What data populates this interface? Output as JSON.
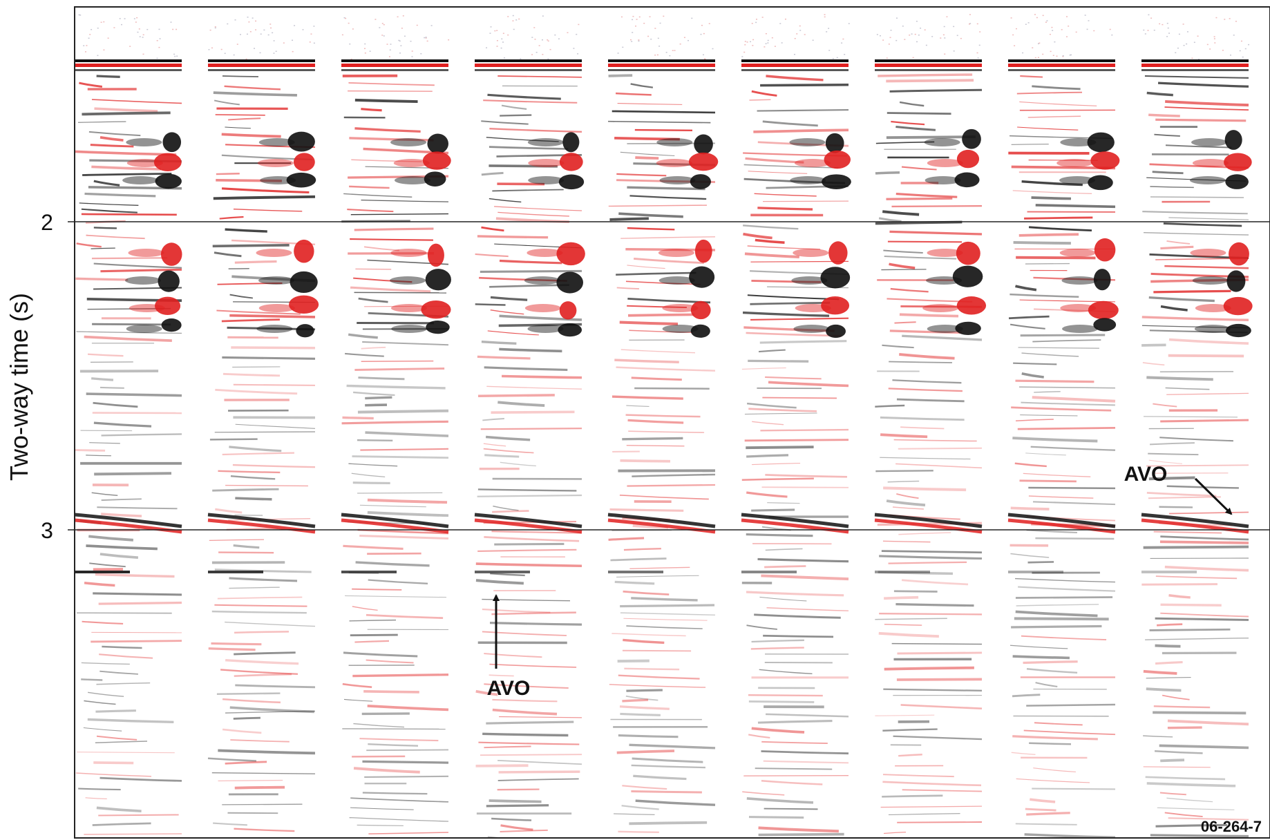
{
  "figure": {
    "y_axis_label": "Two-way time (s)",
    "y_ticks": [
      "2",
      "3"
    ],
    "annotations": [
      "AVO",
      "AVO"
    ],
    "figure_id": "06-264-7",
    "panel_count": 9
  },
  "colors": {
    "positive": "#e02020",
    "negative": "#101010",
    "frame": "#222222",
    "background": "#ffffff"
  }
}
